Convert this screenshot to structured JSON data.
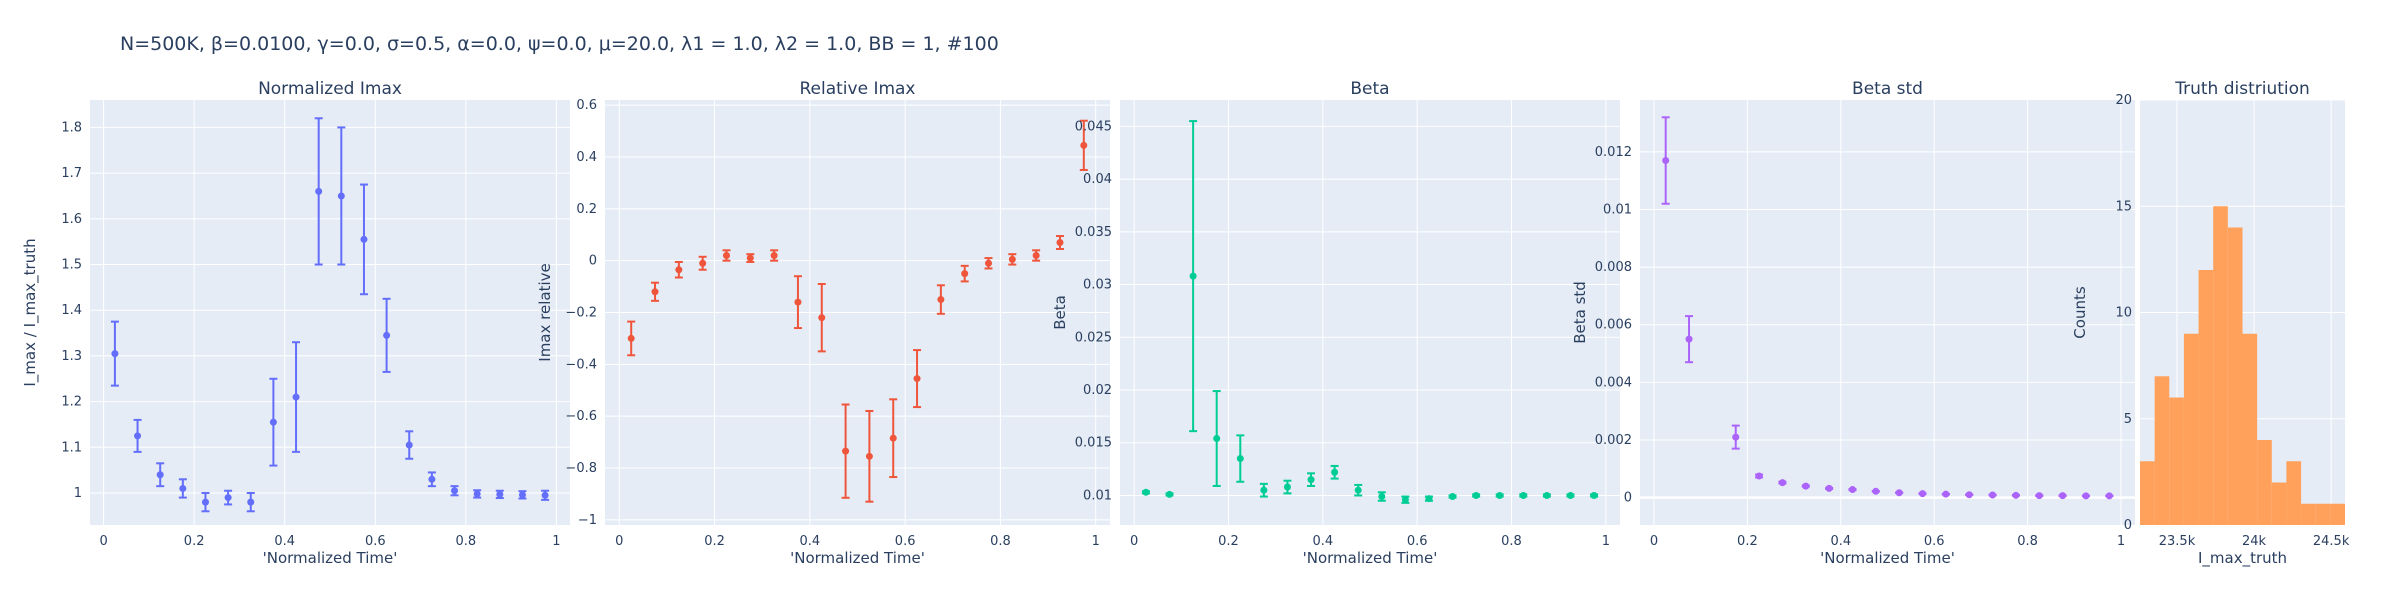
{
  "figure": {
    "title": "N=500K, β=0.0100, γ=0.0, σ=0.5,  α=0.0, ψ=0.0, μ=20.0, λ1 = 1.0, λ2 = 1.0, BB = 1, #100"
  },
  "colors": {
    "plot_bg": "#e5ecf6",
    "grid": "#ffffff",
    "text": "#2a3f5f",
    "blue": "#636efa",
    "red": "#ef553b",
    "green": "#00cc96",
    "purple": "#ab63fa",
    "orange": "#ffa15a"
  },
  "chart_data": [
    {
      "type": "scatter",
      "title": "Normalized Imax",
      "xlabel": "'Normalized Time'",
      "ylabel": "I_max / I_max_truth",
      "xlim": [
        -0.03,
        1.03
      ],
      "ylim": [
        0.93,
        1.86
      ],
      "xticks": [
        0,
        0.2,
        0.4,
        0.6,
        0.8,
        1
      ],
      "xtick_labels": [
        "0",
        "0.2",
        "0.4",
        "0.6",
        "0.8",
        "1"
      ],
      "yticks": [
        1,
        1.1,
        1.2,
        1.3,
        1.4,
        1.5,
        1.6,
        1.7,
        1.8
      ],
      "ytick_labels": [
        "1",
        "1.1",
        "1.2",
        "1.3",
        "1.4",
        "1.5",
        "1.6",
        "1.7",
        "1.8"
      ],
      "grid": true,
      "color": "#636efa",
      "x": [
        0.025,
        0.075,
        0.125,
        0.175,
        0.225,
        0.275,
        0.325,
        0.375,
        0.425,
        0.475,
        0.525,
        0.575,
        0.625,
        0.675,
        0.725,
        0.775,
        0.825,
        0.875,
        0.925,
        0.975
      ],
      "y": [
        1.305,
        1.125,
        1.04,
        1.01,
        0.98,
        0.99,
        0.98,
        1.155,
        1.21,
        1.66,
        1.65,
        1.555,
        1.345,
        1.105,
        1.03,
        1.005,
        0.998,
        0.997,
        0.996,
        0.995
      ],
      "err": [
        0.07,
        0.035,
        0.025,
        0.02,
        0.02,
        0.015,
        0.02,
        0.095,
        0.12,
        0.16,
        0.15,
        0.12,
        0.08,
        0.03,
        0.015,
        0.01,
        0.008,
        0.008,
        0.008,
        0.01
      ]
    },
    {
      "type": "scatter",
      "title": "Relative Imax",
      "xlabel": "'Normalized Time'",
      "ylabel": "Imax relative",
      "xlim": [
        -0.03,
        1.03
      ],
      "ylim": [
        -1.02,
        0.62
      ],
      "xticks": [
        0,
        0.2,
        0.4,
        0.6,
        0.8,
        1
      ],
      "xtick_labels": [
        "0",
        "0.2",
        "0.4",
        "0.6",
        "0.8",
        "1"
      ],
      "yticks": [
        -1,
        -0.8,
        -0.6,
        -0.4,
        -0.2,
        0,
        0.2,
        0.4,
        0.6
      ],
      "ytick_labels": [
        "−1",
        "−0.8",
        "−0.6",
        "−0.4",
        "−0.2",
        "0",
        "0.2",
        "0.4",
        "0.6"
      ],
      "grid": true,
      "color": "#ef553b",
      "x": [
        0.025,
        0.075,
        0.125,
        0.175,
        0.225,
        0.275,
        0.325,
        0.375,
        0.425,
        0.475,
        0.525,
        0.575,
        0.625,
        0.675,
        0.725,
        0.775,
        0.825,
        0.875,
        0.925,
        0.975
      ],
      "y": [
        -0.3,
        -0.12,
        -0.035,
        -0.01,
        0.02,
        0.01,
        0.02,
        -0.16,
        -0.22,
        -0.735,
        -0.755,
        -0.685,
        -0.455,
        -0.15,
        -0.05,
        -0.01,
        0.005,
        0.02,
        0.07,
        0.445
      ],
      "err": [
        0.065,
        0.035,
        0.03,
        0.025,
        0.02,
        0.015,
        0.02,
        0.1,
        0.13,
        0.18,
        0.175,
        0.15,
        0.11,
        0.055,
        0.03,
        0.02,
        0.02,
        0.02,
        0.025,
        0.095
      ]
    },
    {
      "type": "scatter",
      "title": "Beta",
      "xlabel": "'Normalized Time'",
      "ylabel": "Beta",
      "xlim": [
        -0.03,
        1.03
      ],
      "ylim": [
        0.0072,
        0.0475
      ],
      "xticks": [
        0,
        0.2,
        0.4,
        0.6,
        0.8,
        1
      ],
      "xtick_labels": [
        "0",
        "0.2",
        "0.4",
        "0.6",
        "0.8",
        "1"
      ],
      "yticks": [
        0.01,
        0.015,
        0.02,
        0.025,
        0.03,
        0.035,
        0.04,
        0.045
      ],
      "ytick_labels": [
        "0.01",
        "0.015",
        "0.02",
        "0.025",
        "0.03",
        "0.035",
        "0.04",
        "0.045"
      ],
      "grid": true,
      "color": "#00cc96",
      "x": [
        0.025,
        0.075,
        0.125,
        0.175,
        0.225,
        0.275,
        0.325,
        0.375,
        0.425,
        0.475,
        0.525,
        0.575,
        0.625,
        0.675,
        0.725,
        0.775,
        0.825,
        0.875,
        0.925,
        0.975
      ],
      "y": [
        0.0103,
        0.0101,
        0.0308,
        0.0154,
        0.0135,
        0.0105,
        0.0108,
        0.0115,
        0.0122,
        0.0105,
        0.0099,
        0.0096,
        0.0097,
        0.0099,
        0.01,
        0.01,
        0.01,
        0.01,
        0.01,
        0.01
      ],
      "err": [
        0.0001,
        0.0001,
        0.0147,
        0.0045,
        0.0022,
        0.0006,
        0.0006,
        0.0006,
        0.0006,
        0.0005,
        0.0004,
        0.0003,
        0.0002,
        0.0001,
        0.0001,
        0.0001,
        0.0001,
        0.0001,
        0.0001,
        0.0001
      ]
    },
    {
      "type": "scatter",
      "title": "Beta std",
      "xlabel": "'Normalized Time'",
      "ylabel": "Beta std",
      "xlim": [
        -0.03,
        1.03
      ],
      "ylim": [
        -0.00095,
        0.0138
      ],
      "xticks": [
        0,
        0.2,
        0.4,
        0.6,
        0.8,
        1
      ],
      "xtick_labels": [
        "0",
        "0.2",
        "0.4",
        "0.6",
        "0.8",
        "1"
      ],
      "yticks": [
        0,
        0.002,
        0.004,
        0.006,
        0.008,
        0.01,
        0.012
      ],
      "ytick_labels": [
        "0",
        "0.002",
        "0.004",
        "0.006",
        "0.008",
        "0.01",
        "0.012"
      ],
      "grid": true,
      "zeroline": true,
      "color": "#ab63fa",
      "x": [
        0.025,
        0.075,
        0.175,
        0.225,
        0.275,
        0.325,
        0.375,
        0.425,
        0.475,
        0.525,
        0.575,
        0.625,
        0.675,
        0.725,
        0.775,
        0.825,
        0.875,
        0.925,
        0.975
      ],
      "y": [
        0.0117,
        0.0055,
        0.0021,
        0.00075,
        0.00052,
        0.0004,
        0.00032,
        0.00028,
        0.00022,
        0.00017,
        0.00014,
        0.00012,
        0.0001,
        9e-05,
        8e-05,
        7e-05,
        7e-05,
        6e-05,
        6e-05
      ],
      "err": [
        0.0015,
        0.0008,
        0.0004,
        5e-05,
        3e-05,
        2e-05,
        2e-05,
        2e-05,
        1e-05,
        1e-05,
        1e-05,
        1e-05,
        1e-05,
        1e-05,
        1e-05,
        1e-05,
        1e-05,
        1e-05,
        1e-05
      ]
    },
    {
      "type": "bar",
      "title": "Truth distriution",
      "xlabel": "I_max_truth",
      "ylabel": "Counts",
      "xlim": [
        23260,
        24590
      ],
      "ylim": [
        0,
        20
      ],
      "xticks": [
        23500,
        24000,
        24500
      ],
      "xtick_labels": [
        "23.5k",
        "24k",
        "24.5k"
      ],
      "yticks": [
        0,
        5,
        10,
        15,
        20
      ],
      "ytick_labels": [
        "0",
        "5",
        "10",
        "15",
        "20"
      ],
      "grid": true,
      "color": "#ffa15a",
      "bin_start": 23260,
      "bin_width": 95,
      "values": [
        3,
        7,
        6,
        9,
        12,
        15,
        14,
        9,
        4,
        2,
        3,
        1,
        1,
        1
      ]
    }
  ]
}
